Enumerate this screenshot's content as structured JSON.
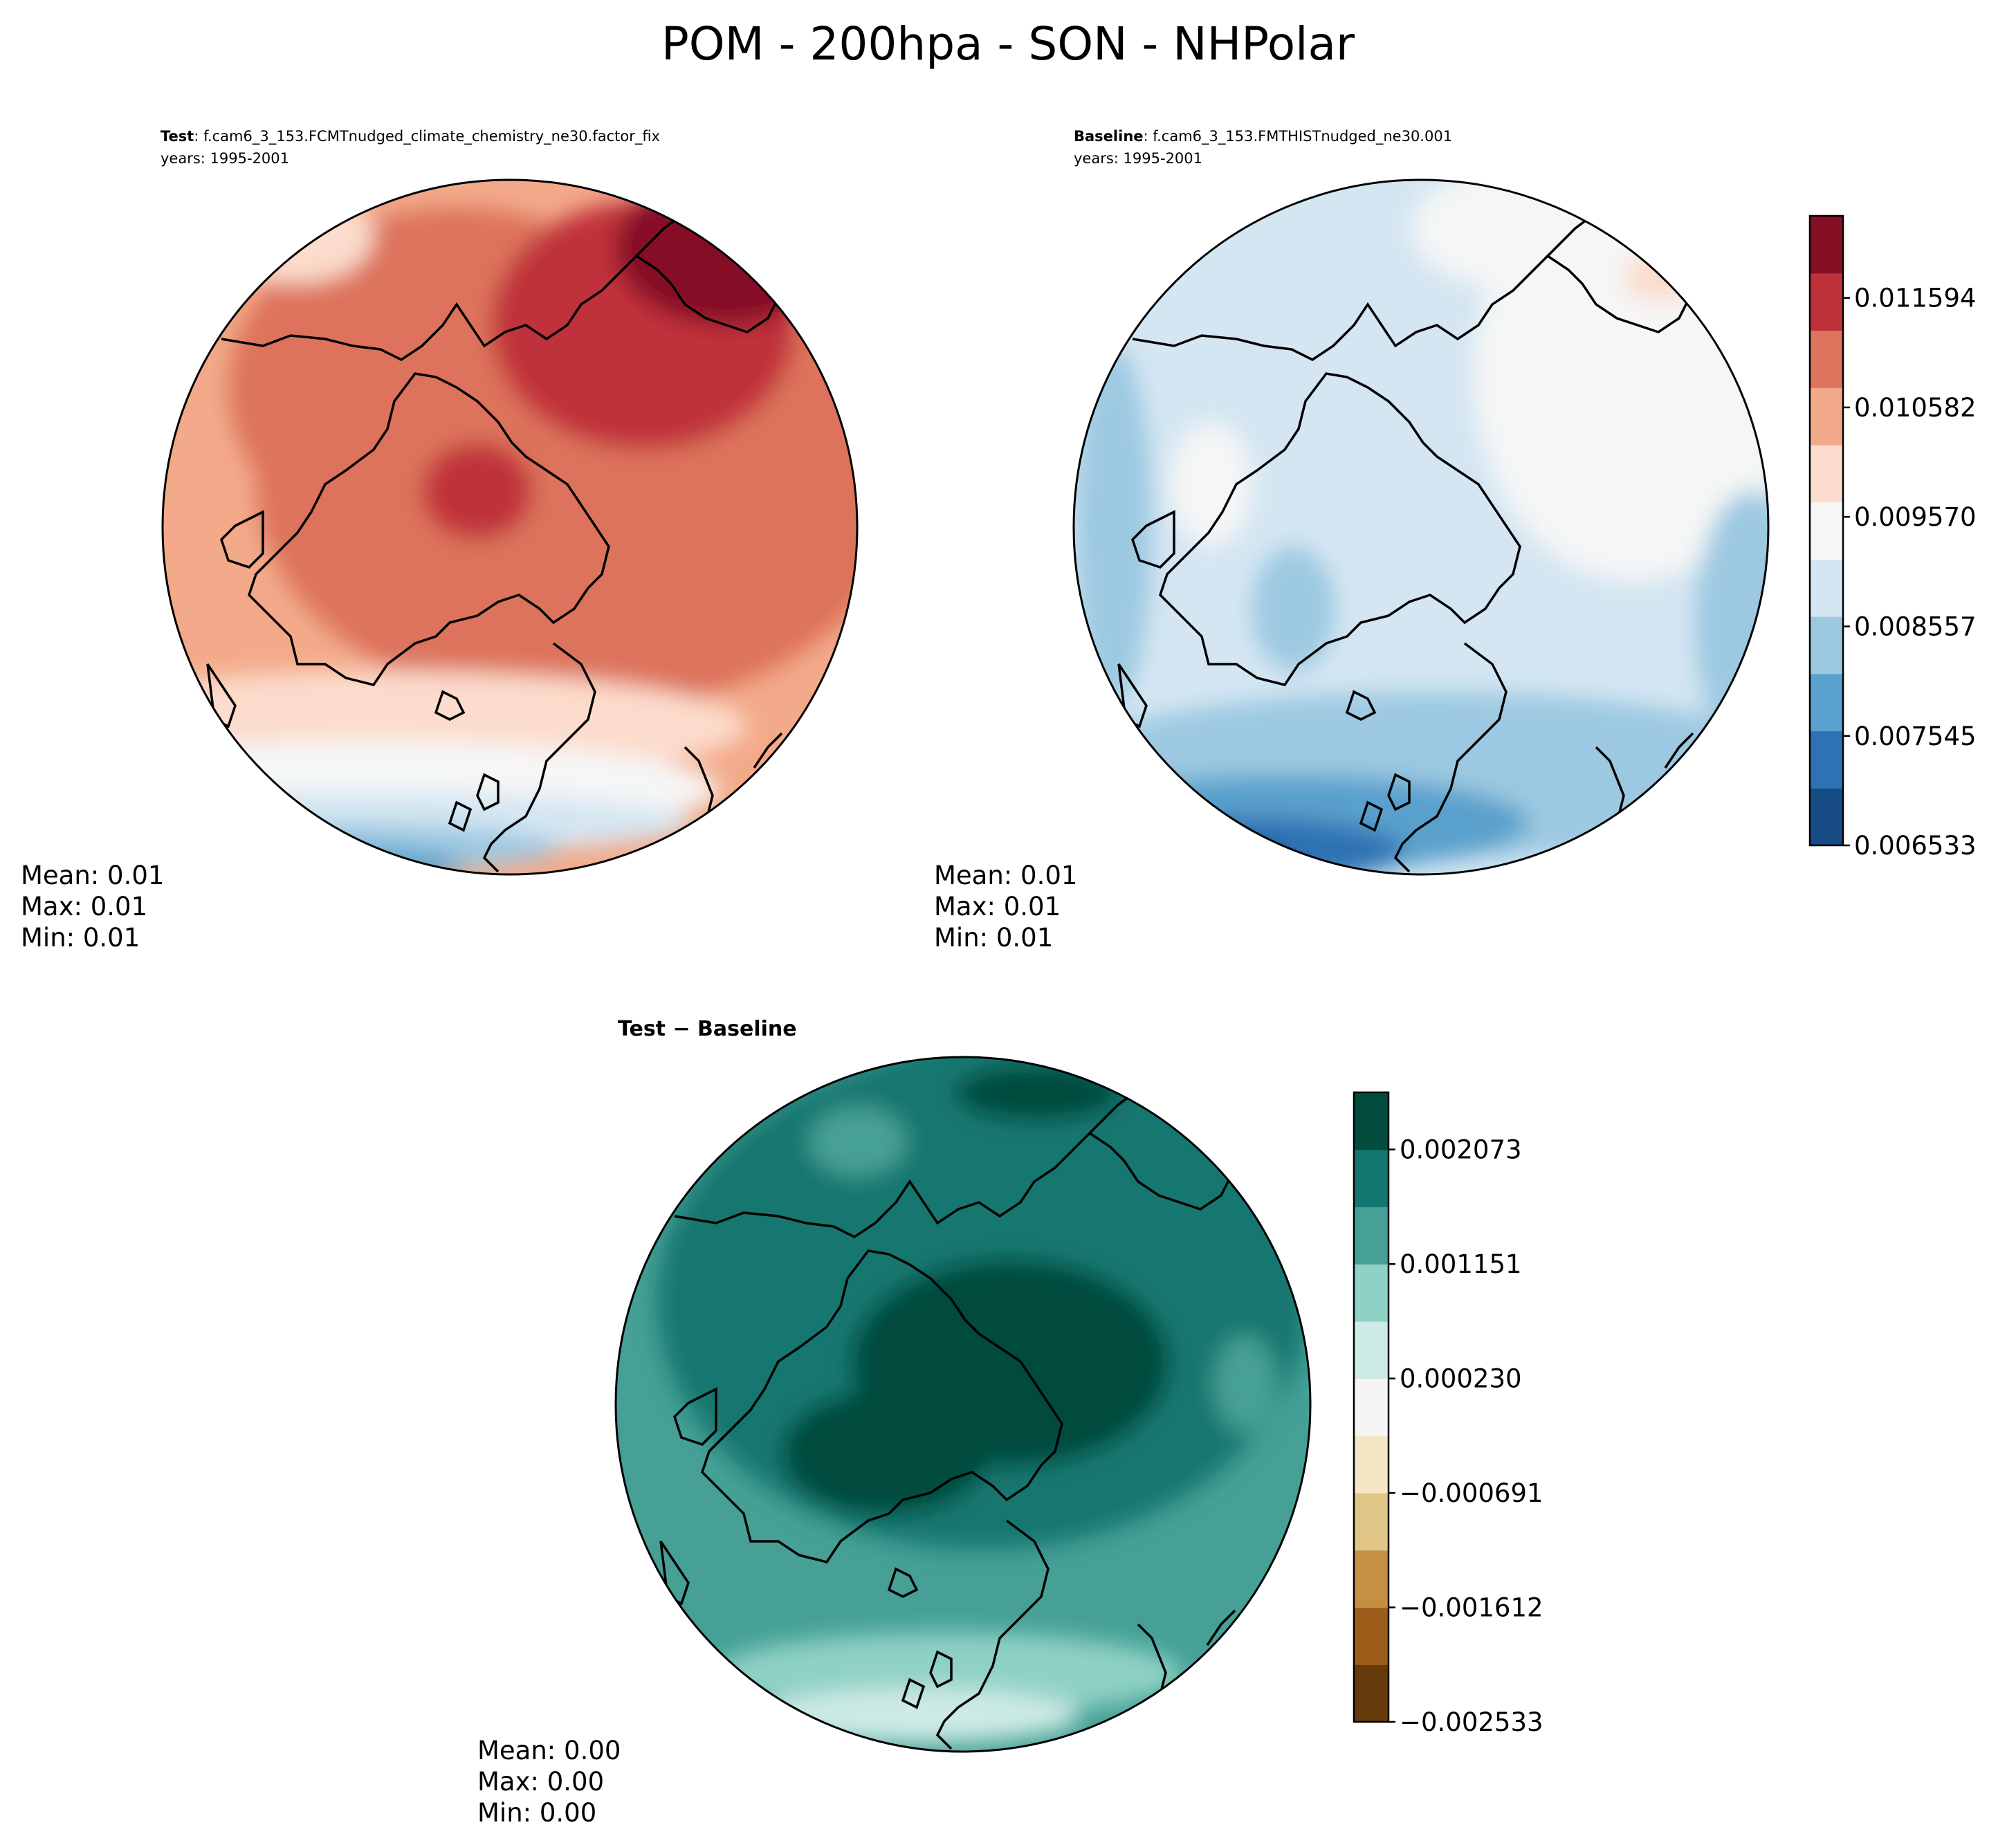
{
  "figure": {
    "title": "POM - 200hpa - SON - NHPolar"
  },
  "panels": {
    "test": {
      "label_bold": "Test",
      "label_text": ": f.cam6_3_153.FCMTnudged_climate_chemistry_ne30.factor_fix",
      "years": "years: 1995-2001",
      "stats": {
        "mean": "Mean:  0.01",
        "max": "Max:  0.01",
        "min": "Min:  0.01"
      }
    },
    "baseline": {
      "label_bold": "Baseline",
      "label_text": ": f.cam6_3_153.FMTHISTnudged_ne30.001",
      "years": "years: 1995-2001",
      "stats": {
        "mean": "Mean:  0.01",
        "max": "Max:  0.01",
        "min": "Min:  0.01"
      }
    },
    "diff": {
      "label_bold": "Test − Baseline",
      "stats": {
        "mean": "Mean:  0.00",
        "max": "Max:  0.00",
        "min": "Min:  0.00"
      }
    }
  },
  "chart_data": [
    {
      "type": "heatmap",
      "projection": "north polar stereographic",
      "panel": "test",
      "colormap": "RdBu_r",
      "field_description": "POM concentration at 200 hPa, SON mean, 1995-2001",
      "dominant_level_range": [
        0.01033,
        0.01134
      ]
    },
    {
      "type": "heatmap",
      "projection": "north polar stereographic",
      "panel": "baseline",
      "colormap": "RdBu_r",
      "field_description": "POM concentration at 200 hPa, SON mean, 1995-2001",
      "dominant_level_range": [
        0.00856,
        0.00906
      ]
    },
    {
      "type": "colorbar",
      "for": "test/baseline",
      "vmin": 0.006533,
      "vmax": 0.012353,
      "n_levels": 11,
      "tick_values": [
        0.006533,
        0.007545,
        0.008557,
        0.00957,
        0.010582,
        0.011594
      ],
      "tick_labels": [
        "0.006533",
        "0.007545",
        "0.008557",
        "0.009570",
        "0.010582",
        "0.011594"
      ],
      "colors": [
        "#164b84",
        "#2e72b3",
        "#5aa0cc",
        "#9cc9e1",
        "#d4e6f2",
        "#f5f6f6",
        "#fcdccc",
        "#f3aa8a",
        "#dd735c",
        "#c0323a",
        "#860f25"
      ]
    },
    {
      "type": "heatmap",
      "projection": "north polar stereographic",
      "panel": "diff",
      "colormap": "BrBG",
      "field_description": "Test minus Baseline difference",
      "dominant_level_range": [
        0.00161,
        0.00207
      ]
    },
    {
      "type": "colorbar",
      "for": "diff",
      "vmin": -0.002533,
      "vmax": 0.002533,
      "n_levels": 11,
      "tick_values": [
        -0.002533,
        -0.001612,
        -0.000691,
        0.00023,
        0.001151,
        0.002073
      ],
      "tick_labels": [
        "−0.002533",
        "−0.001612",
        "−0.000691",
        "0.000230",
        "0.001151",
        "0.002073"
      ],
      "colors": [
        "#653b0b",
        "#9c5e1a",
        "#c69043",
        "#dfc586",
        "#f5e7c6",
        "#f5f5f5",
        "#cdeae5",
        "#8fd1c5",
        "#46a096",
        "#137770",
        "#024c3e"
      ]
    }
  ]
}
